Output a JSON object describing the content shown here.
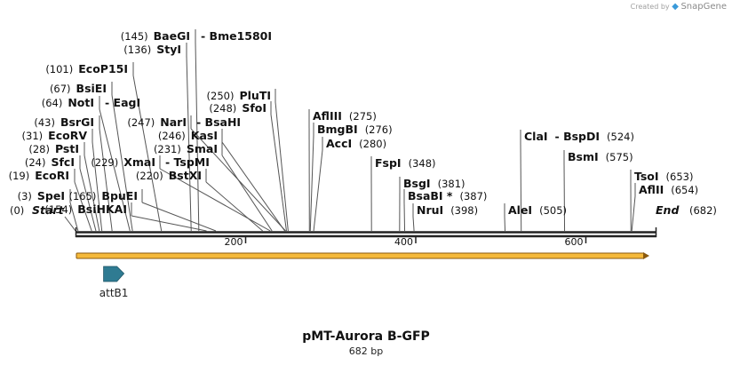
{
  "credit": {
    "prefix": "Created by",
    "logo_icon": "snapgene-logo-icon",
    "brand": "SnapGene"
  },
  "plasmid": {
    "name": "pMT-Aurora B-GFP",
    "length_label": "682 bp",
    "length": 682
  },
  "axis": {
    "ticks": [
      {
        "pos": 200,
        "label": "200"
      },
      {
        "pos": 400,
        "label": "400"
      },
      {
        "pos": 600,
        "label": "600"
      }
    ],
    "start_label": "Start",
    "start_pos": "(0)",
    "end_label": "End",
    "end_pos": "(682)"
  },
  "sites": [
    {
      "name": "SpeI",
      "pos": "(3)",
      "bp": 3
    },
    {
      "name": "EcoRI",
      "pos": "(19)",
      "bp": 19
    },
    {
      "name": "SfcI",
      "pos": "(24)",
      "bp": 24
    },
    {
      "name": "PstI",
      "pos": "(28)",
      "bp": 28
    },
    {
      "name": "EcoRV",
      "pos": "(31)",
      "bp": 31
    },
    {
      "name": "BsrGI",
      "pos": "(43)",
      "bp": 43
    },
    {
      "name": "NotI",
      "pos": "(64)",
      "bp": 64,
      "extra": "EagI"
    },
    {
      "name": "BsiEI",
      "pos": "(67)",
      "bp": 67
    },
    {
      "name": "EcoP15I",
      "pos": "(101)",
      "bp": 101
    },
    {
      "name": "StyI",
      "pos": "(136)",
      "bp": 136
    },
    {
      "name": "BaeGI",
      "pos": "(145)",
      "bp": 145,
      "extra": "Bme1580I"
    },
    {
      "name": "BsiHKAI",
      "pos": "(154)",
      "bp": 154
    },
    {
      "name": "BpuEI",
      "pos": "(165)",
      "bp": 165
    },
    {
      "name": "BstXI",
      "pos": "(220)",
      "bp": 220
    },
    {
      "name": "XmaI",
      "pos": "(229)",
      "bp": 229,
      "extra": "TspMI"
    },
    {
      "name": "SmaI",
      "pos": "(231)",
      "bp": 231
    },
    {
      "name": "KasI",
      "pos": "(246)",
      "bp": 246
    },
    {
      "name": "NarI",
      "pos": "(247)",
      "bp": 247,
      "extra": "BsaHI"
    },
    {
      "name": "SfoI",
      "pos": "(248)",
      "bp": 248
    },
    {
      "name": "PluTI",
      "pos": "(250)",
      "bp": 250
    },
    {
      "name": "AflIII",
      "pos": "(275)",
      "bp": 275
    },
    {
      "name": "BmgBI",
      "pos": "(276)",
      "bp": 276
    },
    {
      "name": "AccI",
      "pos": "(280)",
      "bp": 280
    },
    {
      "name": "FspI",
      "pos": "(348)",
      "bp": 348
    },
    {
      "name": "BsgI",
      "pos": "(381)",
      "bp": 381
    },
    {
      "name": "BsaBI *",
      "pos": "(387)",
      "bp": 387
    },
    {
      "name": "NruI",
      "pos": "(398)",
      "bp": 398
    },
    {
      "name": "AleI",
      "pos": "(505)",
      "bp": 505
    },
    {
      "name": "ClaI",
      "pos": "(524)",
      "bp": 524,
      "extra": "BspDI"
    },
    {
      "name": "BsmI",
      "pos": "(575)",
      "bp": 575
    },
    {
      "name": "TsoI",
      "pos": "(653)",
      "bp": 653
    },
    {
      "name": "AflII",
      "pos": "(654)",
      "bp": 654
    }
  ],
  "features": [
    {
      "name": "attB1",
      "start": 33,
      "end": 57,
      "color": "#2f7b92",
      "direction": "forward"
    }
  ],
  "orf": {
    "start": 0,
    "end": 682,
    "color": "#f5b93a",
    "border": "#8a5a10",
    "direction": "forward"
  }
}
